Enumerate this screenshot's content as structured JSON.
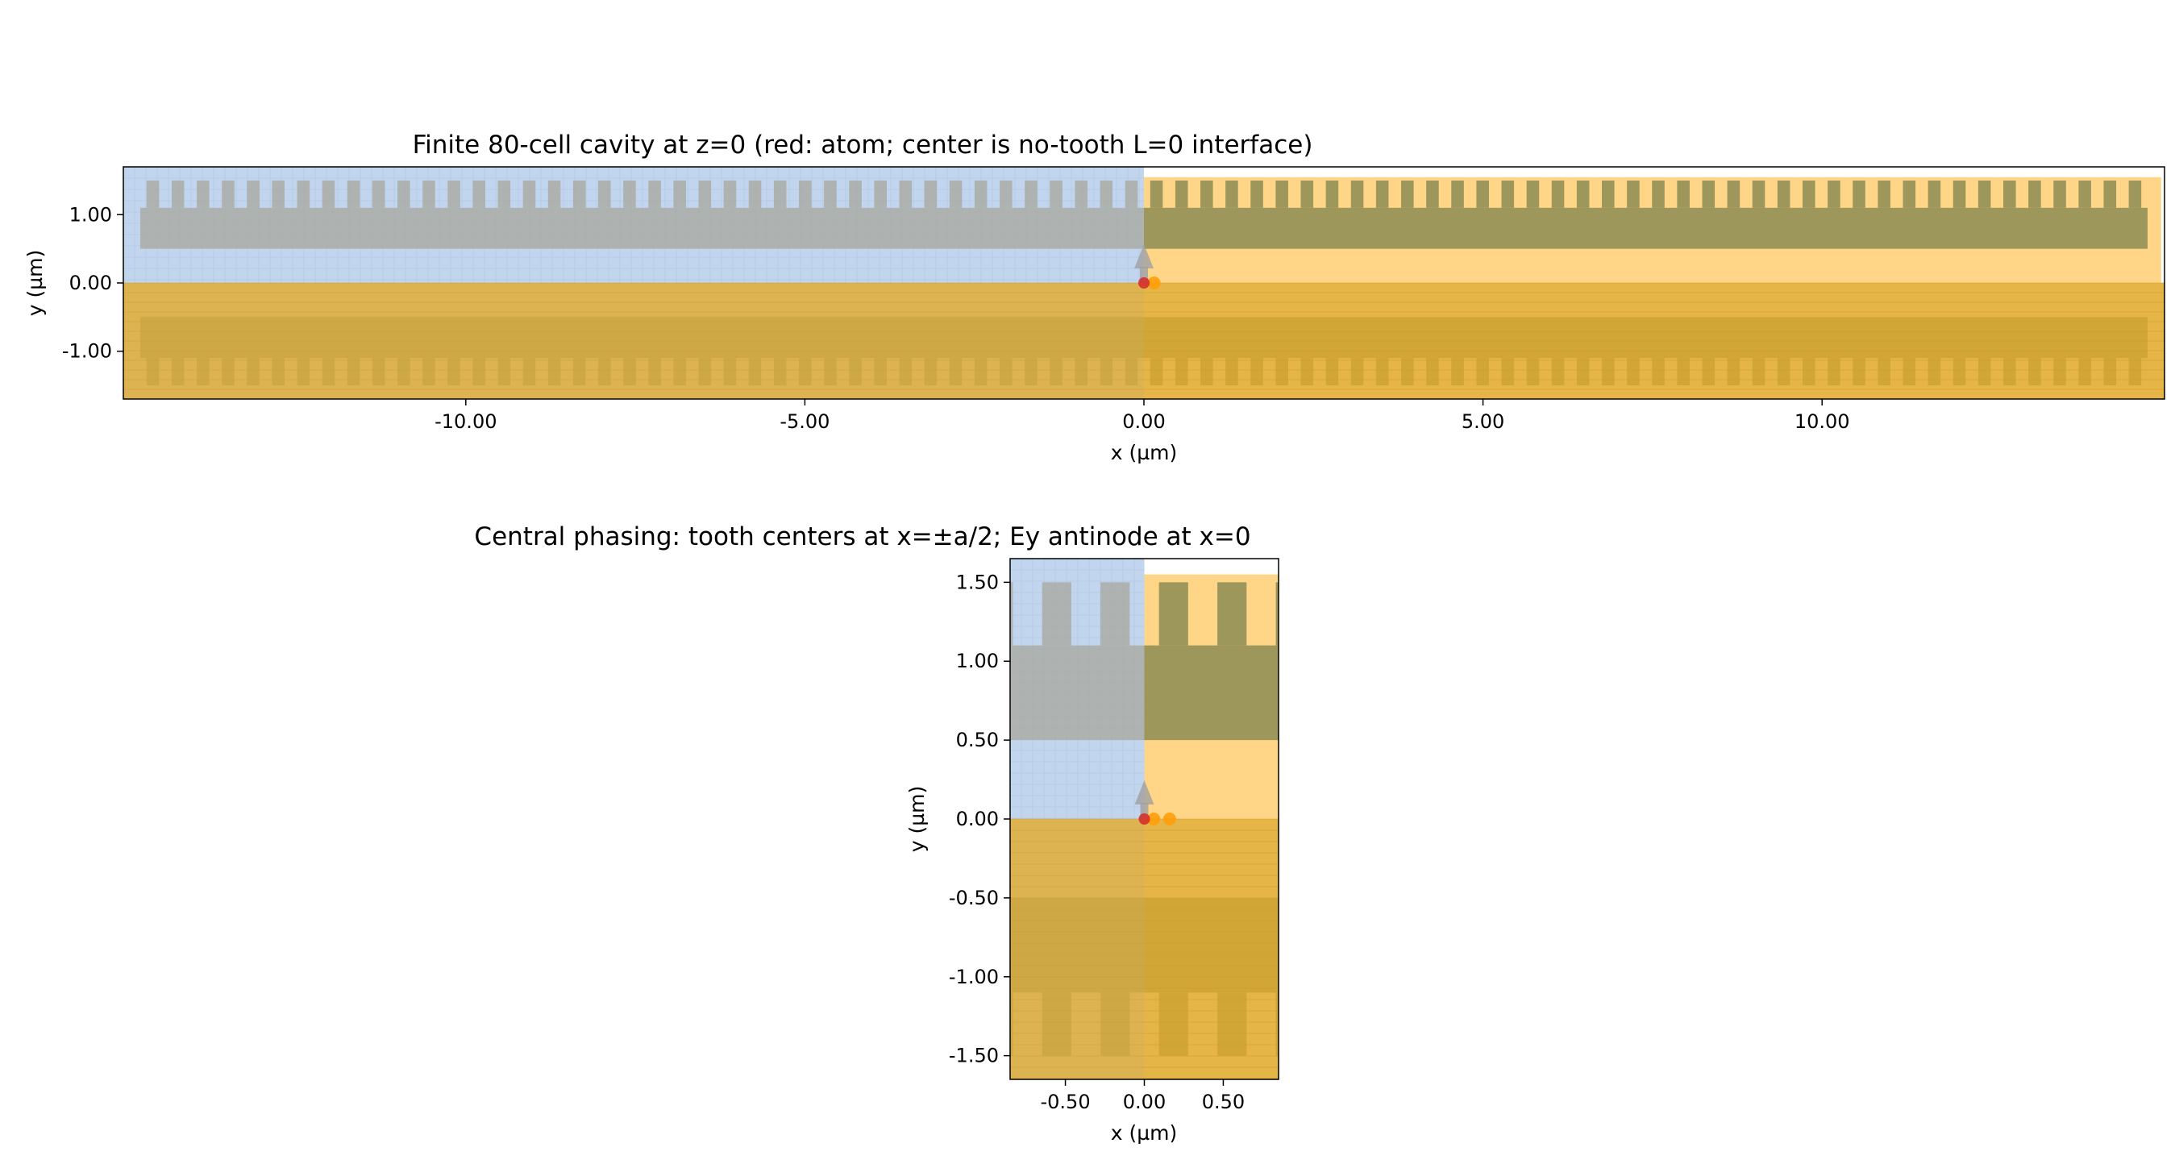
{
  "chart_data": [
    {
      "type": "diagram-plot",
      "title": "Finite 80-cell cavity at z=0 (red: atom; center is no-tooth L=0 interface)",
      "xlabel": "x (µm)",
      "ylabel": "y (µm)",
      "xlim": [
        -15.05,
        15.05
      ],
      "ylim": [
        -1.7,
        1.7
      ],
      "xticks": [
        -10,
        -5,
        0,
        5,
        10
      ],
      "xtick_labels": [
        "-10.00",
        "-5.00",
        "0.00",
        "5.00",
        "10.00"
      ],
      "yticks": [
        -1,
        0,
        1
      ],
      "ytick_labels": [
        "-1.00",
        "0.00",
        "1.00"
      ],
      "grid": false,
      "geometry": {
        "cell_count": 80,
        "lattice_constant": 0.37,
        "tooth_width": 0.185,
        "beam_outer_y": 1.5,
        "beam_inner_y": 1.1,
        "beam_core_y": 0.5,
        "beam_half_length": 14.8,
        "simulation_half_length": 15.0
      },
      "atom": {
        "x": 0.0,
        "y": 0.0,
        "color": "#d62728"
      },
      "sources": [
        {
          "x": 0.15,
          "y": 0.0,
          "color": "#ff9f0a"
        }
      ],
      "colors": {
        "left_monitor": "#aec7e8",
        "structure": "#8c8c55",
        "background": "#ffd27a",
        "lower_region": "#e0a828",
        "grid_lines": "#b0c4de"
      }
    },
    {
      "type": "diagram-plot",
      "title": "Central phasing: tooth centers at x=±a/2; Ey antinode at x=0",
      "xlabel": "x (µm)",
      "ylabel": "y (µm)",
      "xlim": [
        -0.85,
        0.85
      ],
      "ylim": [
        -1.65,
        1.65
      ],
      "xticks": [
        -0.5,
        0,
        0.5
      ],
      "xtick_labels": [
        "-0.50",
        "0.00",
        "0.50"
      ],
      "yticks": [
        -1.5,
        -1,
        -0.5,
        0,
        0.5,
        1,
        1.5
      ],
      "ytick_labels": [
        "-1.50",
        "-1.00",
        "-0.50",
        "0.00",
        "0.50",
        "1.00",
        "1.50"
      ],
      "grid": false,
      "geometry": {
        "lattice_constant": 0.37,
        "tooth_width": 0.185,
        "beam_outer_y": 1.5,
        "beam_inner_y": 1.1,
        "beam_core_y": 0.5
      },
      "atom": {
        "x": 0.0,
        "y": 0.0,
        "color": "#d62728"
      },
      "sources": [
        {
          "x": 0.06,
          "y": 0.0,
          "color": "#ff9f0a"
        },
        {
          "x": 0.16,
          "y": 0.0,
          "color": "#ff9f0a"
        }
      ],
      "colors": {
        "left_monitor": "#aec7e8",
        "structure": "#8c8c55",
        "background": "#ffd27a",
        "lower_region": "#e0a828",
        "grid_lines": "#b0c4de"
      }
    }
  ]
}
